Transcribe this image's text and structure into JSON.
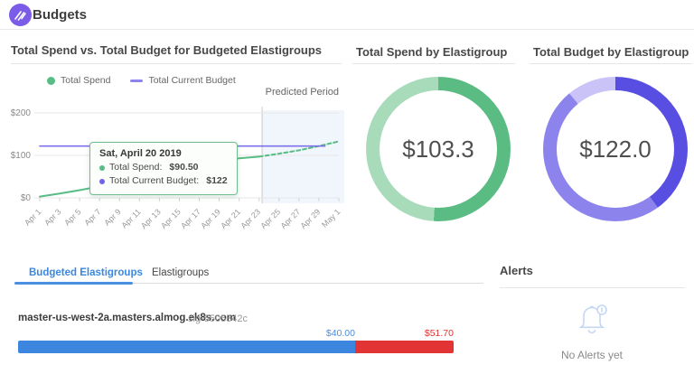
{
  "header": {
    "title": "Budgets",
    "logo": "spotinst-logo"
  },
  "colors": {
    "accent_green": "#57bd84",
    "accent_green_light": "#a7dbba",
    "accent_purple": "#584ee2",
    "accent_purple_mid": "#8d83ec",
    "accent_purple_light": "#c9c3f7",
    "budget_line": "#7b71ea",
    "tab_active": "#3b87de",
    "bar_blue": "#3d86e0",
    "bar_red": "#e23434",
    "logo_purple": "#7a5ce8"
  },
  "panels": {
    "spend_vs_budget": {
      "title": "Total Spend vs. Total Budget for Budgeted Elastigroups",
      "legend": [
        {
          "label": "Total Spend",
          "color": "#57bd84",
          "marker": "dot"
        },
        {
          "label": "Total Current Budget",
          "color": "#8d83ec",
          "marker": "dash"
        }
      ],
      "predicted_label": "Predicted Period",
      "tooltip": {
        "date": "Sat, April 20 2019",
        "rows": [
          {
            "label": "Total Spend:",
            "value": "$90.50",
            "color": "#57bd84"
          },
          {
            "label": "Total Current Budget:",
            "value": "$122",
            "color": "#6f63e8"
          }
        ]
      }
    },
    "total_spend": {
      "title": "Total Spend by Elastigroup"
    },
    "total_budget": {
      "title": "Total Budget by Elastigroup"
    }
  },
  "tabs": {
    "items": [
      {
        "label": "Budgeted Elastigroups",
        "active": true
      },
      {
        "label": "Elastigroups",
        "active": false
      }
    ]
  },
  "budgeted_list": {
    "rows": [
      {
        "name": "master-us-west-2a.masters.almog.ek8s.com",
        "sig": "sig-5505342c"
      }
    ]
  },
  "alerts": {
    "title": "Alerts",
    "empty_text": "No Alerts yet",
    "icon": "bell-icon"
  },
  "chart_data": [
    {
      "type": "line",
      "title": "Total Spend vs. Total Budget for Budgeted Elastigroups",
      "x_tick_labels": [
        "Apr 1",
        "Apr 3",
        "Apr 5",
        "Apr 7",
        "Apr 9",
        "Apr 11",
        "Apr 13",
        "Apr 15",
        "Apr 17",
        "Apr 19",
        "Apr 21",
        "Apr 23",
        "Apr 25",
        "Apr 27",
        "Apr 29",
        "May 1"
      ],
      "y_tick_labels": [
        "$0",
        "$100",
        "$200"
      ],
      "y_tick_values": [
        0,
        100,
        200
      ],
      "ylim": [
        0,
        200
      ],
      "series": [
        {
          "name": "Total Spend",
          "color": "#57bd84",
          "style": "solid",
          "points": [
            [
              0,
              3
            ],
            [
              2,
              10
            ],
            [
              4,
              18
            ],
            [
              6,
              27
            ],
            [
              8,
              34
            ],
            [
              10,
              42
            ],
            [
              12,
              50
            ],
            [
              14,
              58
            ],
            [
              16,
              67
            ],
            [
              18,
              78
            ],
            [
              19,
              90.5
            ],
            [
              20,
              93
            ],
            [
              22,
              97
            ]
          ]
        },
        {
          "name": "Total Spend (predicted)",
          "color": "#57bd84",
          "style": "dashed",
          "points": [
            [
              22,
              97
            ],
            [
              24,
              104
            ],
            [
              26,
              112
            ],
            [
              28,
              122
            ],
            [
              30,
              133
            ]
          ]
        },
        {
          "name": "Total Current Budget",
          "color": "#7b71ea",
          "style": "solid",
          "points": [
            [
              0,
              122
            ],
            [
              28.6,
              122
            ]
          ]
        }
      ],
      "marker": {
        "day": 19,
        "value": 90.5,
        "color": "#57bd84"
      },
      "predicted_region": {
        "start_day": 22.3,
        "end_day": 30,
        "label": "Predicted Period",
        "fill": "#eef3fb"
      }
    },
    {
      "type": "pie",
      "title": "Total Spend by Elastigroup",
      "center_label": "$103.3",
      "segments": [
        {
          "pct": 51,
          "color": "#5abc83"
        },
        {
          "pct": 49,
          "color": "#a7dbba"
        }
      ]
    },
    {
      "type": "pie",
      "title": "Total Budget by Elastigroup",
      "center_label": "$122.0",
      "segments": [
        {
          "pct": 40,
          "color": "#584ee2"
        },
        {
          "pct": 49,
          "color": "#8d83ec"
        },
        {
          "pct": 11,
          "color": "#c9c3f7"
        }
      ]
    },
    {
      "type": "bar",
      "label": "master-us-west-2a.masters.almog.ek8s.com",
      "total": 51.7,
      "segments": [
        {
          "label": "$40.00",
          "value": 40.0,
          "color": "#3d86e0"
        },
        {
          "label": "$51.70",
          "value": 11.7,
          "color": "#e23434"
        }
      ]
    }
  ]
}
